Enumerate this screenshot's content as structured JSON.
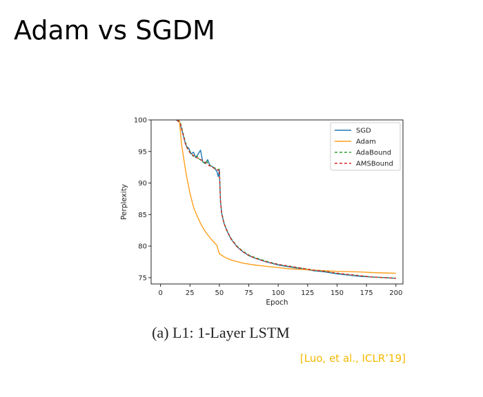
{
  "slide": {
    "title": "Adam vs SGDM",
    "caption": "(a) L1: 1-Layer LSTM",
    "citation": "[Luo, et al., ICLR’19]"
  },
  "chart_data": {
    "type": "line",
    "title": "",
    "xlabel": "Epoch",
    "ylabel": "Perplexity",
    "xlim": [
      -8,
      206
    ],
    "ylim": [
      74,
      100
    ],
    "xticks": [
      0,
      25,
      50,
      75,
      100,
      125,
      150,
      175,
      200
    ],
    "yticks": [
      75,
      80,
      85,
      90,
      95,
      100
    ],
    "grid": false,
    "legend": "top-right",
    "series": [
      {
        "name": "SGD",
        "color": "#1f77b4",
        "dash": "",
        "x": [
          13,
          16,
          18,
          20,
          22,
          24,
          26,
          28,
          30,
          32,
          34,
          36,
          38,
          40,
          42,
          44,
          46,
          48,
          49,
          50,
          51,
          52,
          54,
          56,
          58,
          60,
          65,
          70,
          75,
          80,
          90,
          100,
          110,
          120,
          130,
          140,
          150,
          160,
          170,
          180,
          190,
          200
        ],
        "y": [
          100,
          99.8,
          98.5,
          97.0,
          95.8,
          95.5,
          94.6,
          94.9,
          94.0,
          94.6,
          95.2,
          93.3,
          93.1,
          93.7,
          92.8,
          92.6,
          92.3,
          91.8,
          91.0,
          92.0,
          87.0,
          85.2,
          83.6,
          82.6,
          81.8,
          81.1,
          79.9,
          79.1,
          78.5,
          78.1,
          77.5,
          77.0,
          76.7,
          76.4,
          76.1,
          75.9,
          75.6,
          75.4,
          75.2,
          75.1,
          75.0,
          74.9
        ]
      },
      {
        "name": "Adam",
        "color": "#ff9f1c",
        "dash": "",
        "x": [
          16,
          18,
          20,
          22,
          25,
          28,
          31,
          34,
          37,
          40,
          43,
          46,
          48,
          50,
          55,
          60,
          70,
          80,
          90,
          100,
          110,
          120,
          130,
          140,
          150,
          160,
          170,
          180,
          190,
          200
        ],
        "y": [
          100,
          96.0,
          93.5,
          91.2,
          88.4,
          86.2,
          84.8,
          83.6,
          82.6,
          81.8,
          81.1,
          80.5,
          80.1,
          78.8,
          78.2,
          77.8,
          77.3,
          77.0,
          76.8,
          76.6,
          76.4,
          76.3,
          76.2,
          76.1,
          76.0,
          75.95,
          75.9,
          75.8,
          75.75,
          75.7
        ]
      },
      {
        "name": "AdaBound",
        "color": "#2ca02c",
        "dash": "4,3",
        "x": [
          14,
          17,
          19,
          21,
          23,
          25,
          27,
          29,
          31,
          33,
          35,
          37,
          39,
          41,
          43,
          45,
          47,
          49,
          50,
          51,
          52,
          54,
          56,
          58,
          60,
          65,
          70,
          75,
          80,
          90,
          100,
          110,
          120,
          130,
          140,
          150,
          160,
          170,
          180,
          190,
          200
        ],
        "y": [
          100,
          99.5,
          98.0,
          96.5,
          95.6,
          95.0,
          94.4,
          94.1,
          94.3,
          93.8,
          93.5,
          93.2,
          93.5,
          92.9,
          92.7,
          92.5,
          92.3,
          92.1,
          92.2,
          87.2,
          85.3,
          83.7,
          82.7,
          81.9,
          81.2,
          80.0,
          79.2,
          78.6,
          78.2,
          77.6,
          77.1,
          76.8,
          76.5,
          76.2,
          76.0,
          75.7,
          75.5,
          75.3,
          75.1,
          75.0,
          74.95
        ]
      },
      {
        "name": "AMSBound",
        "color": "#d62728",
        "dash": "4,3",
        "x": [
          14,
          17,
          19,
          21,
          23,
          25,
          27,
          29,
          31,
          33,
          35,
          37,
          39,
          41,
          43,
          45,
          47,
          49,
          50,
          51,
          52,
          54,
          56,
          58,
          60,
          65,
          70,
          75,
          80,
          90,
          100,
          110,
          120,
          130,
          140,
          150,
          160,
          170,
          180,
          190,
          200
        ],
        "y": [
          100,
          99.3,
          97.8,
          96.3,
          95.4,
          94.8,
          94.5,
          94.2,
          94.0,
          93.9,
          93.6,
          93.4,
          93.1,
          92.8,
          92.6,
          92.4,
          92.2,
          92.0,
          92.1,
          87.0,
          85.1,
          83.6,
          82.6,
          81.8,
          81.1,
          79.9,
          79.1,
          78.5,
          78.1,
          77.5,
          77.1,
          76.8,
          76.5,
          76.2,
          76.0,
          75.7,
          75.5,
          75.3,
          75.1,
          75.0,
          74.9
        ]
      }
    ]
  }
}
